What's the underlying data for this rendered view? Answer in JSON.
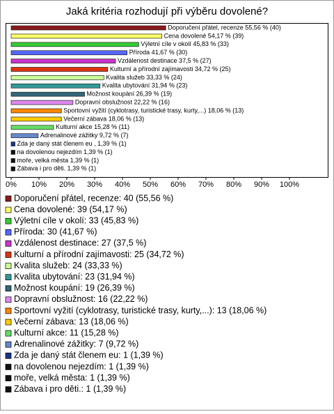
{
  "chart_data": {
    "type": "bar",
    "orientation": "horizontal",
    "title": "Jaká kritéria rozhodují při výběru dovolené?",
    "categories": [
      "Doporučení přátel, recenze 55,56 % (40)",
      "Cena dovolené 54,17 % (39)",
      "Výletní cíle v okolí 45,83 % (33)",
      "Příroda 41,67 % (30)",
      "Vzdálenost destinace 37,5 % (27)",
      "Kulturní a přírodní zajímavosti 34,72 % (25)",
      "Kvalita služeb 33,33 % (24)",
      "Kvalita ubytování 31,94 % (23)",
      "Možnost koupání 26,39 % (19)",
      "Dopravní obslužnost 22,22 % (16)",
      "Sportovní vyžití (cyklotrasy, turistické trasy, kurty,...) 18,06 % (13)",
      "Večerní zábava 18,06 % (13)",
      "Kulturní akce 15,28 % (11)",
      "Adrenalinové zážitky 9,72 % (7)",
      "Zda je daný stát členem eu , 1,39 % (1)",
      "na dovolenou nejezdím 1,39 % (1)",
      "moře, velká města 1,39 % (1)",
      "Zábava i pro děti. 1,39 % (1)"
    ],
    "values": [
      55.56,
      54.17,
      45.83,
      41.67,
      37.5,
      34.72,
      33.33,
      31.94,
      26.39,
      22.22,
      18.06,
      18.06,
      15.28,
      9.72,
      1.39,
      1.39,
      1.39,
      1.39
    ],
    "colors": [
      "#8b1a1a",
      "#ffff66",
      "#33cc33",
      "#5566ff",
      "#cc33cc",
      "#dd3311",
      "#ccff99",
      "#339999",
      "#336677",
      "#dd88ee",
      "#ff8800",
      "#ffcc00",
      "#66dd66",
      "#6688cc",
      "#1a3388",
      "#111111",
      "#111111",
      "#111111"
    ],
    "legend": [
      "Doporučení přátel, recenze: 40 (55,56 %)",
      "Cena dovolené: 39 (54,17 %)",
      "Výletní cíle v okolí: 33 (45,83 %)",
      "Příroda: 30 (41,67 %)",
      "Vzdálenost destinace: 27 (37,5 %)",
      "Kulturní a přírodní zajímavosti: 25 (34,72 %)",
      "Kvalita služeb: 24 (33,33 %)",
      "Kvalita ubytování: 23 (31,94 %)",
      "Možnost koupání: 19 (26,39 %)",
      "Dopravní obslužnost: 16 (22,22 %)",
      "Sportovní vyžití (cyklotrasy, turistické trasy, kurty,...): 13 (18,06 %)",
      "Večerní zábava: 13 (18,06 %)",
      "Kulturní akce: 11 (15,28 %)",
      "Adrenalinové zážitky: 7 (9,72 %)",
      "Zda je daný stát členem eu: 1 (1,39 %)",
      "na dovolenou nejezdím: 1 (1,39 %)",
      "moře, velká města: 1 (1,39 %)",
      "Zábava i pro děti.: 1 (1,39 %)"
    ],
    "xlim": [
      0,
      100
    ],
    "xticks": [
      {
        "value": 0,
        "label": "0%"
      },
      {
        "value": 10,
        "label": "10%"
      },
      {
        "value": 20,
        "label": "20%"
      },
      {
        "value": 30,
        "label": "30%"
      },
      {
        "value": 40,
        "label": "40%"
      },
      {
        "value": 50,
        "label": "50%"
      },
      {
        "value": 60,
        "label": "60%"
      },
      {
        "value": 70,
        "label": "70%"
      },
      {
        "value": 80,
        "label": "80%"
      },
      {
        "value": 90,
        "label": "90%"
      },
      {
        "value": 100,
        "label": "100%"
      }
    ]
  }
}
